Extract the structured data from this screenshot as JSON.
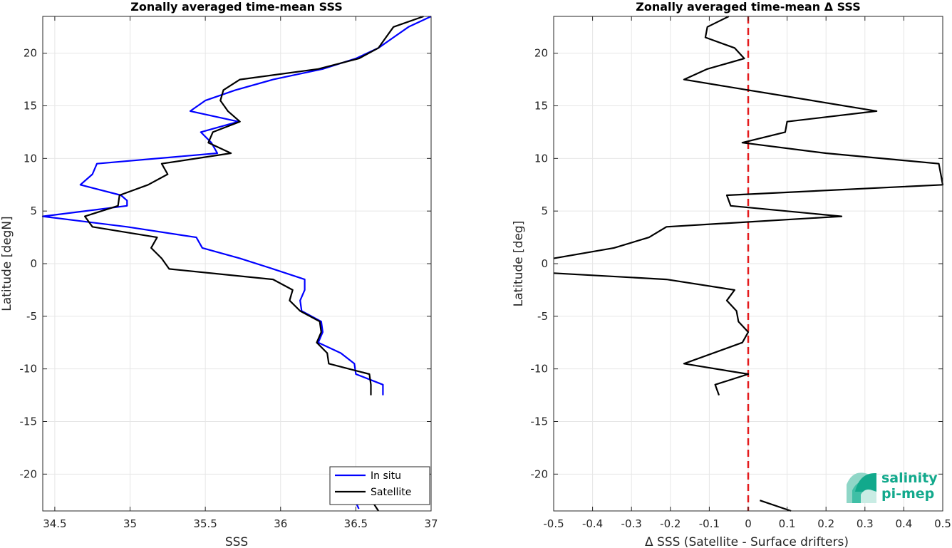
{
  "chart_data": [
    {
      "type": "line",
      "title": "Zonally averaged time-mean SSS",
      "xlabel": "SSS",
      "ylabel": "Latitude [degN]",
      "xlim": [
        34.42,
        37.0
      ],
      "ylim": [
        -23.5,
        23.5
      ],
      "xticks": [
        "34.5",
        "35",
        "35.5",
        "36",
        "36.5",
        "37"
      ],
      "yticks": [
        "20",
        "15",
        "10",
        "5",
        "0",
        "-5",
        "-10",
        "-15",
        "-20"
      ],
      "grid": true,
      "legend": "bottom-right",
      "series": [
        {
          "name": "In situ",
          "color": "#0000ff",
          "points": [
            [
              37.0,
              23.5
            ],
            [
              36.85,
              22.5
            ],
            [
              36.75,
              21.5
            ],
            [
              36.65,
              20.5
            ],
            [
              36.5,
              19.5
            ],
            [
              36.28,
              18.5
            ],
            [
              35.95,
              17.5
            ],
            [
              35.7,
              16.5
            ],
            [
              35.5,
              15.5
            ],
            [
              35.4,
              14.5
            ],
            [
              35.72,
              13.5
            ],
            [
              35.47,
              12.5
            ],
            [
              35.54,
              11.5
            ],
            [
              35.58,
              10.5
            ],
            [
              34.78,
              9.5
            ],
            [
              34.75,
              8.5
            ],
            [
              34.67,
              7.5
            ],
            [
              34.94,
              6.5
            ],
            [
              34.98,
              6.0
            ],
            [
              34.98,
              5.5
            ],
            [
              34.42,
              4.5
            ],
            [
              34.98,
              3.5
            ],
            [
              35.44,
              2.5
            ],
            [
              35.48,
              1.5
            ],
            [
              35.73,
              0.5
            ],
            [
              35.95,
              -0.5
            ],
            [
              36.16,
              -1.5
            ],
            [
              36.16,
              -2.5
            ],
            [
              36.13,
              -3.5
            ],
            [
              36.14,
              -4.5
            ],
            [
              36.27,
              -5.5
            ],
            [
              36.28,
              -6.5
            ],
            [
              36.25,
              -7.5
            ],
            [
              36.4,
              -8.5
            ],
            [
              36.49,
              -9.5
            ],
            [
              36.5,
              -10.5
            ],
            [
              36.68,
              -11.5
            ],
            [
              36.68,
              -12.5
            ]
          ]
        },
        {
          "name": "Satellite",
          "color": "#000000",
          "points": [
            [
              36.95,
              23.5
            ],
            [
              36.75,
              22.5
            ],
            [
              36.7,
              21.5
            ],
            [
              36.65,
              20.5
            ],
            [
              36.52,
              19.5
            ],
            [
              36.25,
              18.5
            ],
            [
              35.73,
              17.5
            ],
            [
              35.62,
              16.5
            ],
            [
              35.6,
              15.5
            ],
            [
              35.65,
              14.5
            ],
            [
              35.73,
              13.5
            ],
            [
              35.55,
              12.5
            ],
            [
              35.52,
              11.5
            ],
            [
              35.67,
              10.5
            ],
            [
              35.21,
              9.5
            ],
            [
              35.25,
              8.5
            ],
            [
              35.12,
              7.5
            ],
            [
              34.93,
              6.5
            ],
            [
              34.92,
              5.5
            ],
            [
              34.7,
              4.5
            ],
            [
              34.75,
              3.5
            ],
            [
              35.18,
              2.5
            ],
            [
              35.14,
              1.5
            ],
            [
              35.21,
              0.5
            ],
            [
              35.26,
              -0.5
            ],
            [
              35.95,
              -1.5
            ],
            [
              36.08,
              -2.5
            ],
            [
              36.06,
              -3.5
            ],
            [
              36.13,
              -4.5
            ],
            [
              36.26,
              -5.5
            ],
            [
              36.27,
              -6.5
            ],
            [
              36.24,
              -7.5
            ],
            [
              36.31,
              -8.5
            ],
            [
              36.32,
              -9.5
            ],
            [
              36.59,
              -10.5
            ],
            [
              36.6,
              -11.5
            ],
            [
              36.6,
              -12.5
            ]
          ]
        },
        {
          "name": "",
          "color": "#0000ff",
          "points": [
            [
              36.5,
              -22.7
            ],
            [
              36.52,
              -23.3
            ]
          ]
        },
        {
          "name": "",
          "color": "#000000",
          "points": [
            [
              36.6,
              -22.4
            ],
            [
              36.65,
              -23.5
            ]
          ]
        }
      ],
      "legend_entries": [
        "In situ",
        "Satellite"
      ]
    },
    {
      "type": "line",
      "title": "Zonally averaged time-mean Δ SSS",
      "xlabel": "Δ SSS (Satellite - Surface drifters)",
      "ylabel": "Latitude [deg]",
      "xlim": [
        -0.5,
        0.5
      ],
      "ylim": [
        -23.5,
        23.5
      ],
      "xticks": [
        "-0.5",
        "-0.4",
        "-0.3",
        "-0.2",
        "-0.1",
        "0",
        "0.1",
        "0.2",
        "0.3",
        "0.4",
        "0.5"
      ],
      "yticks": [
        "20",
        "15",
        "10",
        "5",
        "0",
        "-5",
        "-10",
        "-15",
        "-20"
      ],
      "grid": true,
      "reference_line": {
        "x": 0,
        "color": "#e41a1c",
        "style": "dashed"
      },
      "series": [
        {
          "name": "",
          "color": "#000000",
          "points": [
            [
              -0.05,
              23.5
            ],
            [
              -0.105,
              22.5
            ],
            [
              -0.11,
              21.5
            ],
            [
              -0.035,
              20.5
            ],
            [
              -0.01,
              19.5
            ],
            [
              -0.105,
              18.5
            ],
            [
              -0.165,
              17.5
            ],
            [
              0.0,
              16.5
            ],
            [
              0.33,
              14.5
            ],
            [
              0.1,
              13.5
            ],
            [
              0.095,
              12.5
            ],
            [
              -0.015,
              11.5
            ],
            [
              0.2,
              10.5
            ],
            [
              0.49,
              9.5
            ],
            [
              0.495,
              8.5
            ],
            [
              0.5,
              7.5
            ],
            [
              -0.055,
              6.5
            ],
            [
              -0.045,
              5.5
            ],
            [
              0.24,
              4.5
            ],
            [
              -0.21,
              3.5
            ],
            [
              -0.255,
              2.5
            ],
            [
              -0.345,
              1.5
            ],
            [
              -0.5,
              0.5
            ]
          ]
        },
        {
          "name": "",
          "color": "#000000",
          "points": [
            [
              -0.5,
              -0.9
            ],
            [
              -0.21,
              -1.5
            ],
            [
              -0.035,
              -2.5
            ],
            [
              -0.055,
              -3.5
            ],
            [
              -0.03,
              -4.5
            ],
            [
              -0.025,
              -5.5
            ],
            [
              0.0,
              -6.5
            ],
            [
              -0.015,
              -7.5
            ],
            [
              -0.165,
              -9.5
            ],
            [
              0.0,
              -10.5
            ],
            [
              -0.085,
              -11.5
            ],
            [
              -0.075,
              -12.5
            ]
          ]
        },
        {
          "name": "",
          "color": "#000000",
          "points": [
            [
              0.03,
              -22.5
            ],
            [
              0.11,
              -23.5
            ]
          ]
        }
      ]
    }
  ],
  "logo": {
    "line1": "salinity",
    "line2": "pi-mep",
    "color": "#12a98c"
  }
}
